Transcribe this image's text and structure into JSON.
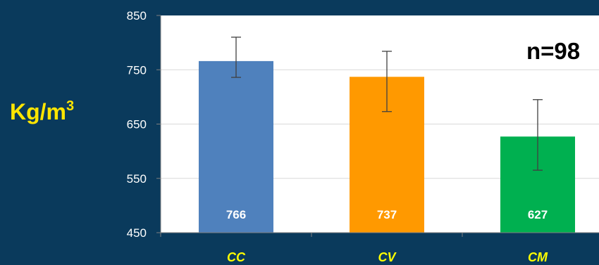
{
  "chart_data": {
    "type": "bar",
    "categories": [
      "CC",
      "CV",
      "CM"
    ],
    "values": [
      766,
      737,
      627
    ],
    "value_labels": [
      "766",
      "737",
      "627"
    ],
    "error_bars": [
      {
        "low": 736,
        "high": 810
      },
      {
        "low": 673,
        "high": 784
      },
      {
        "low": 565,
        "high": 695
      }
    ],
    "bar_colors": [
      "#4f81bd",
      "#ff9900",
      "#00b050"
    ],
    "ylim": [
      450,
      850
    ],
    "yticks": [
      "450",
      "550",
      "650",
      "750",
      "850"
    ],
    "ylabel_main": "Kg/m",
    "ylabel_sup": "3",
    "annotation": "n=98",
    "grid": true,
    "colors": {
      "background": "#0a3a5c",
      "plot_area": "#ffffff",
      "tick_label": "#ffffff",
      "category_label": "#ffff00",
      "ylabel": "#ffe500",
      "annotation": "#000000"
    }
  }
}
